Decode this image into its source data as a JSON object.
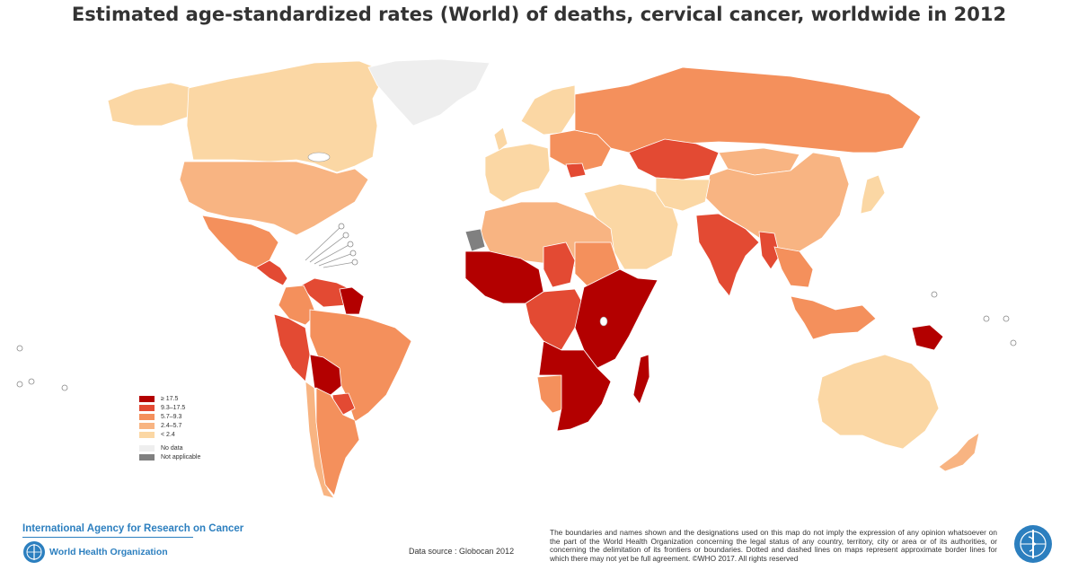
{
  "title": "Estimated age-standardized rates (World) of deaths, cervical cancer, worldwide in 2012",
  "legend": {
    "items": [
      {
        "label": "≥ 17.5",
        "color": "#b30000"
      },
      {
        "label": "9.3–17.5",
        "color": "#e34a33"
      },
      {
        "label": "5.7–9.3",
        "color": "#f4905c"
      },
      {
        "label": "2.4–5.7",
        "color": "#f8b482"
      },
      {
        "label": "< 2.4",
        "color": "#fbd7a4"
      }
    ],
    "extra": [
      {
        "label": "No data",
        "color": "#eeeeee"
      },
      {
        "label": "Not applicable",
        "color": "#808080"
      }
    ]
  },
  "footer": {
    "iarc": "International Agency for Research on Cancer",
    "who": "World Health Organization",
    "source": "Data source : Globocan 2012",
    "disclaimer": "The boundaries and names shown and the designations used on this map do not imply the expression of any opinion whatsoever on the part of the World Health Organization concerning the legal status of any country, territory, city or area or of its authorities, or concerning the delimitation of its frontiers or boundaries. Dotted and dashed lines on maps represent approximate border lines for which there may not yet be full agreement. ©WHO 2017. All rights reserved"
  },
  "regions": [
    {
      "name": "Greenland",
      "category": "No data"
    },
    {
      "name": "Canada",
      "category": "< 2.4"
    },
    {
      "name": "United States",
      "category": "2.4–5.7"
    },
    {
      "name": "Mexico",
      "category": "5.7–9.3"
    },
    {
      "name": "Central America",
      "category": "9.3–17.5"
    },
    {
      "name": "Venezuela",
      "category": "9.3–17.5"
    },
    {
      "name": "Guyana",
      "category": "≥ 17.5"
    },
    {
      "name": "Colombia",
      "category": "5.7–9.3"
    },
    {
      "name": "Peru",
      "category": "9.3–17.5"
    },
    {
      "name": "Brazil",
      "category": "5.7–9.3"
    },
    {
      "name": "Bolivia",
      "category": "≥ 17.5"
    },
    {
      "name": "Paraguay",
      "category": "9.3–17.5"
    },
    {
      "name": "Chile",
      "category": "2.4–5.7"
    },
    {
      "name": "Argentina",
      "category": "5.7–9.3"
    },
    {
      "name": "Western Europe",
      "category": "< 2.4"
    },
    {
      "name": "Eastern Europe",
      "category": "5.7–9.3"
    },
    {
      "name": "Romania",
      "category": "9.3–17.5"
    },
    {
      "name": "Russia",
      "category": "5.7–9.3"
    },
    {
      "name": "Kazakhstan",
      "category": "9.3–17.5"
    },
    {
      "name": "China",
      "category": "2.4–5.7"
    },
    {
      "name": "Mongolia",
      "category": "2.4–5.7"
    },
    {
      "name": "Japan",
      "category": "< 2.4"
    },
    {
      "name": "India",
      "category": "9.3–17.5"
    },
    {
      "name": "Myanmar",
      "category": "9.3–17.5"
    },
    {
      "name": "Southeast Asia",
      "category": "5.7–9.3"
    },
    {
      "name": "Middle East",
      "category": "< 2.4"
    },
    {
      "name": "North Africa",
      "category": "2.4–5.7"
    },
    {
      "name": "Mauritania",
      "category": "Not applicable"
    },
    {
      "name": "West Africa",
      "category": "≥ 17.5"
    },
    {
      "name": "Sudan",
      "category": "5.7–9.3"
    },
    {
      "name": "Chad",
      "category": "9.3–17.5"
    },
    {
      "name": "Central Africa",
      "category": "9.3–17.5"
    },
    {
      "name": "East Africa",
      "category": "≥ 17.5"
    },
    {
      "name": "Southern Africa",
      "category": "≥ 17.5"
    },
    {
      "name": "Namibia",
      "category": "5.7–9.3"
    },
    {
      "name": "Madagascar",
      "category": "≥ 17.5"
    },
    {
      "name": "Indonesia",
      "category": "5.7–9.3"
    },
    {
      "name": "Papua New Guinea",
      "category": "≥ 17.5"
    },
    {
      "name": "Australia",
      "category": "< 2.4"
    },
    {
      "name": "New Zealand",
      "category": "2.4–5.7"
    }
  ]
}
